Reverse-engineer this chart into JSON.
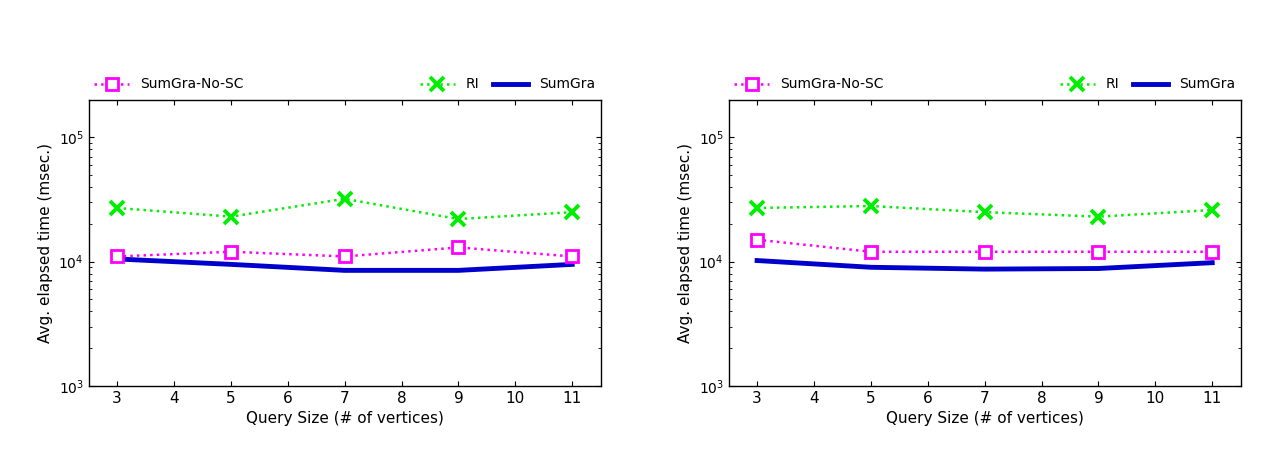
{
  "x": [
    3,
    5,
    7,
    9,
    11
  ],
  "panel1": {
    "RI": [
      27000,
      23000,
      32000,
      22000,
      25000
    ],
    "SumGra": [
      10500,
      9500,
      8500,
      8500,
      9500
    ],
    "SumGra_No_SC": [
      11000,
      12000,
      11000,
      13000,
      11000
    ]
  },
  "panel2": {
    "RI": [
      27000,
      28000,
      25000,
      23000,
      26000
    ],
    "SumGra": [
      10200,
      9000,
      8700,
      8800,
      9800
    ],
    "SumGra_No_SC": [
      15000,
      12000,
      12000,
      12000,
      12000
    ]
  },
  "colors": {
    "RI": "#00ee00",
    "SumGra": "#0000cc",
    "SumGra_No_SC": "#ff00ff"
  },
  "xlabel": "Query Size (# of vertices)",
  "ylabel": "Avg. elapsed time (msec.)",
  "ylim": [
    1000,
    200000
  ],
  "xlim": [
    2.5,
    11.5
  ],
  "xticks": [
    3,
    4,
    5,
    6,
    7,
    8,
    9,
    10,
    11
  ],
  "legend_RI": "RI",
  "legend_SumGra": "SumGra",
  "legend_SumGraNoSC": "SumGra-No-SC",
  "bg_color": "#ffffff"
}
